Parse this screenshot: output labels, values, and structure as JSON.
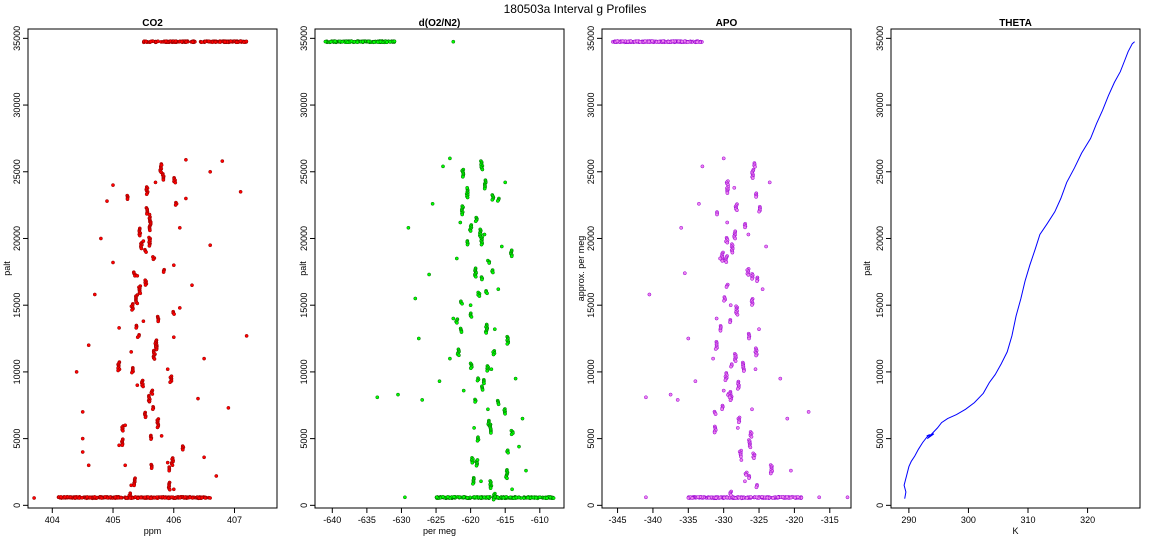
{
  "figure_title": "180503a   Interval g Profiles",
  "chart_data": [
    {
      "type": "scatter",
      "title": "CO2",
      "xlabel": "ppm",
      "ylabel": "palt",
      "xlim": [
        403.6,
        407.7
      ],
      "ylim": [
        -200,
        35700
      ],
      "xticks": [
        404,
        405,
        406,
        407
      ],
      "yticks": [
        0,
        5000,
        10000,
        15000,
        20000,
        25000,
        30000,
        35000
      ],
      "color": "#ff0000",
      "outline": "#8b0000",
      "marker": "open-circle",
      "grid": false,
      "clusters": [
        {
          "x": [
            405.5,
            407.2
          ],
          "y": [
            34750,
            34750
          ],
          "density": "dense"
        },
        {
          "x": [
            404.1,
            406.6
          ],
          "y": [
            570,
            600
          ],
          "density": "dense"
        },
        {
          "x": [
            404.8,
            406.4
          ],
          "y": [
            800,
            25800
          ],
          "density": "medium",
          "center": 405.6
        }
      ],
      "points": [
        {
          "x": 403.7,
          "y": 550
        },
        {
          "x": 404.3,
          "y": 600
        },
        {
          "x": 404.5,
          "y": 5000
        },
        {
          "x": 404.5,
          "y": 4000
        },
        {
          "x": 404.6,
          "y": 3000
        },
        {
          "x": 404.5,
          "y": 7000
        },
        {
          "x": 404.4,
          "y": 10000
        },
        {
          "x": 404.6,
          "y": 12000
        },
        {
          "x": 404.7,
          "y": 15800
        },
        {
          "x": 404.8,
          "y": 20000
        },
        {
          "x": 404.9,
          "y": 22800
        },
        {
          "x": 405.0,
          "y": 24000
        },
        {
          "x": 405.1,
          "y": 4500
        },
        {
          "x": 405.2,
          "y": 3000
        },
        {
          "x": 405.3,
          "y": 1500
        },
        {
          "x": 405.2,
          "y": 6000
        },
        {
          "x": 405.4,
          "y": 9000
        },
        {
          "x": 405.3,
          "y": 11500
        },
        {
          "x": 405.5,
          "y": 13800
        },
        {
          "x": 405.4,
          "y": 17200
        },
        {
          "x": 405.5,
          "y": 19800
        },
        {
          "x": 405.6,
          "y": 21800
        },
        {
          "x": 405.7,
          "y": 24200
        },
        {
          "x": 405.8,
          "y": 25500
        },
        {
          "x": 405.6,
          "y": 7800
        },
        {
          "x": 405.8,
          "y": 5200
        },
        {
          "x": 405.9,
          "y": 3200
        },
        {
          "x": 406.0,
          "y": 1200
        },
        {
          "x": 405.9,
          "y": 10200
        },
        {
          "x": 406.0,
          "y": 12600
        },
        {
          "x": 406.1,
          "y": 14800
        },
        {
          "x": 406.0,
          "y": 18000
        },
        {
          "x": 406.1,
          "y": 20800
        },
        {
          "x": 406.2,
          "y": 23000
        },
        {
          "x": 406.2,
          "y": 25900
        },
        {
          "x": 406.3,
          "y": 16500
        },
        {
          "x": 406.4,
          "y": 8000
        },
        {
          "x": 406.5,
          "y": 11000
        },
        {
          "x": 406.6,
          "y": 19500
        },
        {
          "x": 406.7,
          "y": 2200
        },
        {
          "x": 406.6,
          "y": 25000
        },
        {
          "x": 406.8,
          "y": 25800
        },
        {
          "x": 407.1,
          "y": 23500
        },
        {
          "x": 407.2,
          "y": 12700
        },
        {
          "x": 406.9,
          "y": 7300
        },
        {
          "x": 406.5,
          "y": 3600
        },
        {
          "x": 405.0,
          "y": 18200
        },
        {
          "x": 405.1,
          "y": 13300
        }
      ]
    },
    {
      "type": "scatter",
      "title": "d(O2/N2)",
      "xlabel": "per meg",
      "ylabel": "palt",
      "xlim": [
        -642.5,
        -606.5
      ],
      "ylim": [
        -200,
        35700
      ],
      "xticks": [
        -640,
        -635,
        -630,
        -625,
        -620,
        -615,
        -610
      ],
      "yticks": [
        0,
        5000,
        10000,
        15000,
        20000,
        25000,
        30000,
        35000
      ],
      "color": "#00ff00",
      "outline": "#006400",
      "marker": "open-circle",
      "grid": false,
      "clusters": [
        {
          "x": [
            -641.0,
            -631.0
          ],
          "y": [
            34750,
            34750
          ],
          "density": "dense"
        },
        {
          "x": [
            -625.0,
            -608.0
          ],
          "y": [
            570,
            600
          ],
          "density": "dense"
        },
        {
          "x": [
            -626.0,
            -611.5
          ],
          "y": [
            800,
            25800
          ],
          "density": "medium",
          "center": -618.5
        }
      ],
      "points": [
        {
          "x": -622.5,
          "y": 34750
        },
        {
          "x": -629.5,
          "y": 600
        },
        {
          "x": -633.5,
          "y": 8100
        },
        {
          "x": -630.5,
          "y": 8300
        },
        {
          "x": -627.0,
          "y": 7900
        },
        {
          "x": -629.0,
          "y": 20800
        },
        {
          "x": -628.0,
          "y": 15500
        },
        {
          "x": -627.5,
          "y": 12500
        },
        {
          "x": -626.0,
          "y": 17300
        },
        {
          "x": -625.5,
          "y": 22600
        },
        {
          "x": -624.0,
          "y": 25400
        },
        {
          "x": -623.0,
          "y": 26000
        },
        {
          "x": -624.5,
          "y": 9300
        },
        {
          "x": -623.0,
          "y": 11000
        },
        {
          "x": -622.5,
          "y": 14000
        },
        {
          "x": -622.0,
          "y": 18500
        },
        {
          "x": -621.5,
          "y": 21200
        },
        {
          "x": -620.5,
          "y": 23800
        },
        {
          "x": -619.5,
          "y": 5800
        },
        {
          "x": -619.0,
          "y": 3400
        },
        {
          "x": -618.5,
          "y": 1800
        },
        {
          "x": -617.5,
          "y": 7200
        },
        {
          "x": -617.0,
          "y": 10200
        },
        {
          "x": -616.5,
          "y": 13200
        },
        {
          "x": -616.0,
          "y": 16200
        },
        {
          "x": -615.5,
          "y": 19400
        },
        {
          "x": -615.0,
          "y": 24200
        },
        {
          "x": -613.5,
          "y": 9500
        },
        {
          "x": -612.5,
          "y": 6500
        },
        {
          "x": -612.0,
          "y": 2600
        },
        {
          "x": -613.0,
          "y": 4400
        },
        {
          "x": -614.0,
          "y": 1200
        },
        {
          "x": -620.0,
          "y": 15000
        },
        {
          "x": -618.0,
          "y": 20300
        },
        {
          "x": -621.0,
          "y": 8600
        },
        {
          "x": -610.0,
          "y": 600
        }
      ]
    },
    {
      "type": "scatter",
      "title": "APO",
      "xlabel": "",
      "ylabel": "approx. per meg",
      "xlim": [
        -347.2,
        -312.0
      ],
      "ylim": [
        -200,
        35700
      ],
      "xticks": [
        -345,
        -340,
        -335,
        -330,
        -325,
        -320,
        -315
      ],
      "yticks": [
        0,
        5000,
        10000,
        15000,
        20000,
        25000,
        30000,
        35000
      ],
      "color": "#ee82ee",
      "outline": "#9400d3",
      "marker": "open-circle",
      "grid": false,
      "clusters": [
        {
          "x": [
            -346.0,
            -333.0
          ],
          "y": [
            34750,
            34750
          ],
          "density": "dense"
        },
        {
          "x": [
            -335.0,
            -319.0
          ],
          "y": [
            570,
            600
          ],
          "density": "dense"
        },
        {
          "x": [
            -335.5,
            -320.5
          ],
          "y": [
            800,
            25800
          ],
          "density": "medium",
          "center": -328.0
        }
      ],
      "points": [
        {
          "x": -341.0,
          "y": 600
        },
        {
          "x": -340.5,
          "y": 15800
        },
        {
          "x": -341.0,
          "y": 8100
        },
        {
          "x": -337.5,
          "y": 8300
        },
        {
          "x": -336.5,
          "y": 7900
        },
        {
          "x": -336.0,
          "y": 20800
        },
        {
          "x": -335.5,
          "y": 17400
        },
        {
          "x": -335.0,
          "y": 12500
        },
        {
          "x": -333.5,
          "y": 22600
        },
        {
          "x": -333.0,
          "y": 25400
        },
        {
          "x": -330.0,
          "y": 26000
        },
        {
          "x": -334.0,
          "y": 9300
        },
        {
          "x": -331.5,
          "y": 11000
        },
        {
          "x": -331.0,
          "y": 14000
        },
        {
          "x": -330.5,
          "y": 18500
        },
        {
          "x": -329.5,
          "y": 21200
        },
        {
          "x": -328.5,
          "y": 23800
        },
        {
          "x": -328.0,
          "y": 5800
        },
        {
          "x": -327.5,
          "y": 3400
        },
        {
          "x": -327.0,
          "y": 1800
        },
        {
          "x": -326.0,
          "y": 7200
        },
        {
          "x": -325.5,
          "y": 10200
        },
        {
          "x": -325.0,
          "y": 13200
        },
        {
          "x": -324.5,
          "y": 16200
        },
        {
          "x": -324.0,
          "y": 19400
        },
        {
          "x": -323.5,
          "y": 24200
        },
        {
          "x": -322.0,
          "y": 9500
        },
        {
          "x": -321.0,
          "y": 6500
        },
        {
          "x": -320.5,
          "y": 2600
        },
        {
          "x": -318.0,
          "y": 7000
        },
        {
          "x": -316.5,
          "y": 600
        },
        {
          "x": -312.5,
          "y": 600
        },
        {
          "x": -329.0,
          "y": 15000
        },
        {
          "x": -326.5,
          "y": 20300
        },
        {
          "x": -330.0,
          "y": 8600
        }
      ]
    },
    {
      "type": "line",
      "title": "THETA",
      "xlabel": "K",
      "ylabel": "palt",
      "xlim": [
        287.0,
        328.8
      ],
      "ylim": [
        -200,
        35700
      ],
      "xticks": [
        290,
        300,
        310,
        320
      ],
      "yticks": [
        0,
        5000,
        10000,
        15000,
        20000,
        25000,
        30000,
        35000
      ],
      "color": "#0000ff",
      "grid": false,
      "series": [
        {
          "x": [
            289.3,
            289.5,
            289.2,
            289.6,
            290.0,
            290.4,
            291.0,
            291.6,
            292.3,
            293.0,
            293.5,
            293.0,
            294.2,
            293.1,
            294.8,
            295.5,
            296.5,
            298.0,
            299.5,
            301.0,
            302.5,
            303.5,
            304.5,
            305.5,
            306.5,
            307.3,
            308.0,
            308.8,
            309.5,
            310.3,
            311.2,
            312.0,
            313.2,
            314.5,
            315.5,
            316.5,
            317.8,
            319.0,
            320.5,
            321.5,
            322.5,
            323.5,
            324.5,
            325.5,
            326.2,
            326.8,
            327.5,
            327.8,
            327.9
          ],
          "y": [
            500,
            1000,
            1500,
            2200,
            2900,
            3300,
            3700,
            4200,
            4700,
            5100,
            5300,
            5200,
            5350,
            5000,
            5800,
            6200,
            6500,
            6800,
            7200,
            7700,
            8400,
            9200,
            9800,
            10600,
            11500,
            12700,
            14200,
            15500,
            16800,
            18000,
            19200,
            20300,
            21100,
            22000,
            23000,
            24200,
            25300,
            26400,
            27500,
            28600,
            29600,
            30700,
            31700,
            32500,
            33300,
            34000,
            34600,
            34700,
            34750
          ]
        }
      ]
    }
  ]
}
